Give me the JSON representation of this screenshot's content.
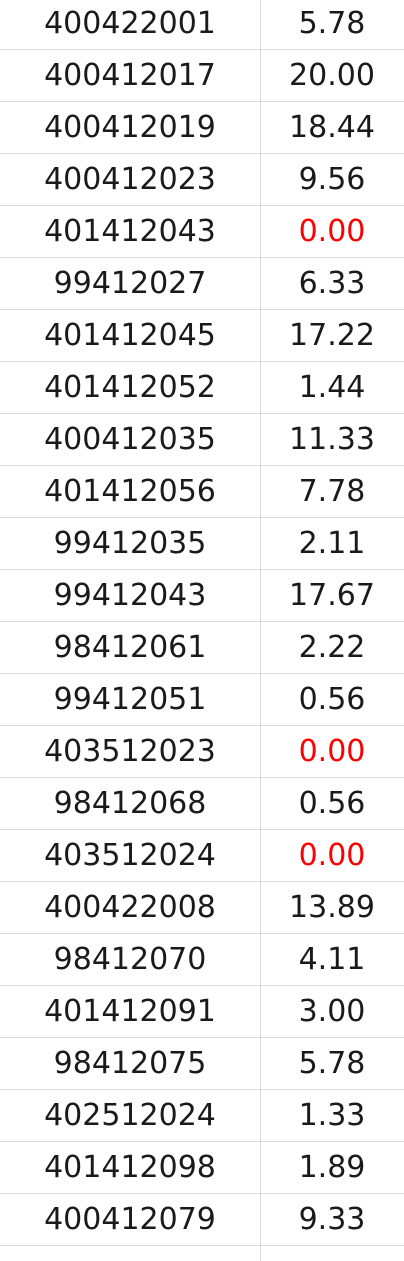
{
  "sheet": {
    "rows": [
      {
        "id": "400422001",
        "value": "5.78"
      },
      {
        "id": "400412017",
        "value": "20.00"
      },
      {
        "id": "400412019",
        "value": "18.44"
      },
      {
        "id": "400412023",
        "value": "9.56"
      },
      {
        "id": "401412043",
        "value": "0.00"
      },
      {
        "id": "99412027",
        "value": "6.33"
      },
      {
        "id": "401412045",
        "value": "17.22"
      },
      {
        "id": "401412052",
        "value": "1.44"
      },
      {
        "id": "400412035",
        "value": "11.33"
      },
      {
        "id": "401412056",
        "value": "7.78"
      },
      {
        "id": "99412035",
        "value": "2.11"
      },
      {
        "id": "99412043",
        "value": "17.67"
      },
      {
        "id": "98412061",
        "value": "2.22"
      },
      {
        "id": "99412051",
        "value": "0.56"
      },
      {
        "id": "403512023",
        "value": "0.00"
      },
      {
        "id": "98412068",
        "value": "0.56"
      },
      {
        "id": "403512024",
        "value": "0.00"
      },
      {
        "id": "400422008",
        "value": "13.89"
      },
      {
        "id": "98412070",
        "value": "4.11"
      },
      {
        "id": "401412091",
        "value": "3.00"
      },
      {
        "id": "98412075",
        "value": "5.78"
      },
      {
        "id": "402512024",
        "value": "1.33"
      },
      {
        "id": "401412098",
        "value": "1.89"
      },
      {
        "id": "400412079",
        "value": "9.33"
      }
    ],
    "colors": {
      "text": "#1a1a1a",
      "zero_value": "#ff0000",
      "gridline": "#d9d9d9"
    }
  }
}
